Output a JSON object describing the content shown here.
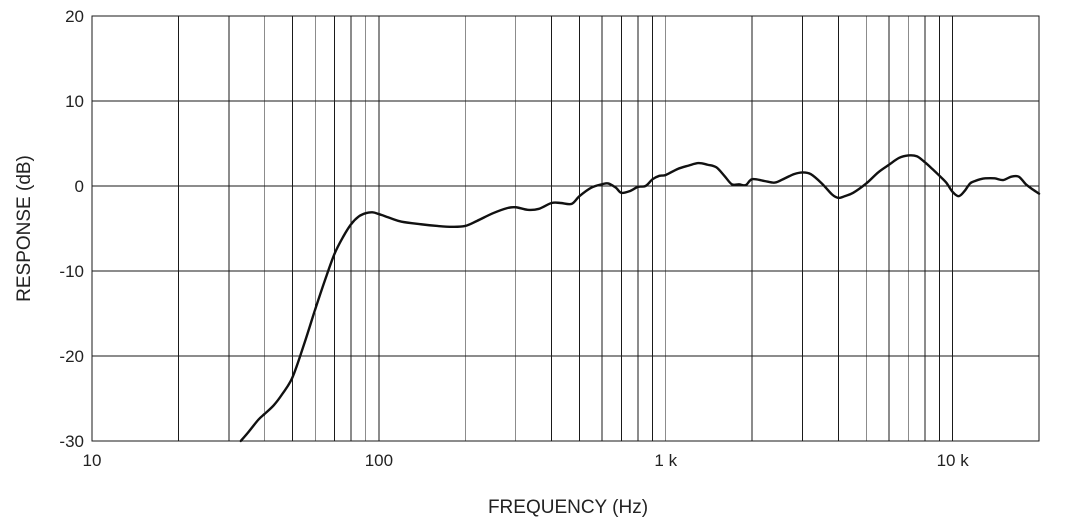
{
  "chart_data": {
    "type": "line",
    "title": "",
    "xlabel": "FREQUENCY (Hz)",
    "ylabel": "RESPONSE (dB)",
    "x_scale": "log",
    "xlim": [
      10,
      20000
    ],
    "ylim": [
      -30,
      20
    ],
    "grid": true,
    "legend": "none",
    "x_ticks": [
      {
        "value": 10,
        "label": "10"
      },
      {
        "value": 100,
        "label": "100"
      },
      {
        "value": 1000,
        "label": "1 k"
      },
      {
        "value": 10000,
        "label": "10 k"
      }
    ],
    "y_ticks": [
      {
        "value": 20,
        "label": "20"
      },
      {
        "value": 10,
        "label": "10"
      },
      {
        "value": 0,
        "label": "0"
      },
      {
        "value": -10,
        "label": "-10"
      },
      {
        "value": -20,
        "label": "-20"
      },
      {
        "value": -30,
        "label": "-30"
      }
    ],
    "series": [
      {
        "color": "#111111",
        "x": [
          33,
          35,
          38,
          40,
          43,
          46,
          50,
          55,
          60,
          65,
          70,
          75,
          80,
          85,
          90,
          95,
          100,
          110,
          120,
          140,
          160,
          180,
          200,
          220,
          250,
          280,
          300,
          330,
          360,
          400,
          430,
          470,
          500,
          550,
          600,
          630,
          670,
          700,
          750,
          800,
          850,
          900,
          950,
          1000,
          1100,
          1200,
          1300,
          1400,
          1500,
          1600,
          1700,
          1800,
          1900,
          2000,
          2200,
          2400,
          2600,
          2800,
          3000,
          3200,
          3500,
          3800,
          4000,
          4200,
          4500,
          5000,
          5500,
          6000,
          6500,
          7000,
          7500,
          8000,
          8500,
          9000,
          9500,
          10000,
          10500,
          11000,
          11500,
          12000,
          12500,
          13000,
          14000,
          15000,
          16000,
          17000,
          18000,
          19000,
          20000
        ],
        "y": [
          -30,
          -29,
          -27.5,
          -26.8,
          -25.8,
          -24.5,
          -22.5,
          -18.5,
          -14.5,
          -11,
          -8,
          -6,
          -4.5,
          -3.6,
          -3.2,
          -3.1,
          -3.3,
          -3.8,
          -4.2,
          -4.5,
          -4.7,
          -4.8,
          -4.7,
          -4.1,
          -3.2,
          -2.6,
          -2.5,
          -2.8,
          -2.7,
          -2,
          -2,
          -2.1,
          -1.2,
          -0.2,
          0.2,
          0.3,
          -0.2,
          -0.8,
          -0.6,
          -0.1,
          0,
          0.8,
          1.2,
          1.3,
          2,
          2.4,
          2.7,
          2.5,
          2.2,
          1.2,
          0.2,
          0.2,
          0.1,
          0.8,
          0.6,
          0.4,
          0.9,
          1.4,
          1.6,
          1.4,
          0.3,
          -1,
          -1.4,
          -1.2,
          -0.8,
          0.3,
          1.6,
          2.5,
          3.3,
          3.6,
          3.5,
          2.8,
          2,
          1.2,
          0.4,
          -0.7,
          -1.2,
          -0.6,
          0.3,
          0.6,
          0.8,
          0.9,
          0.9,
          0.7,
          1.1,
          1.1,
          0.2,
          -0.4,
          -0.9
        ]
      }
    ]
  }
}
